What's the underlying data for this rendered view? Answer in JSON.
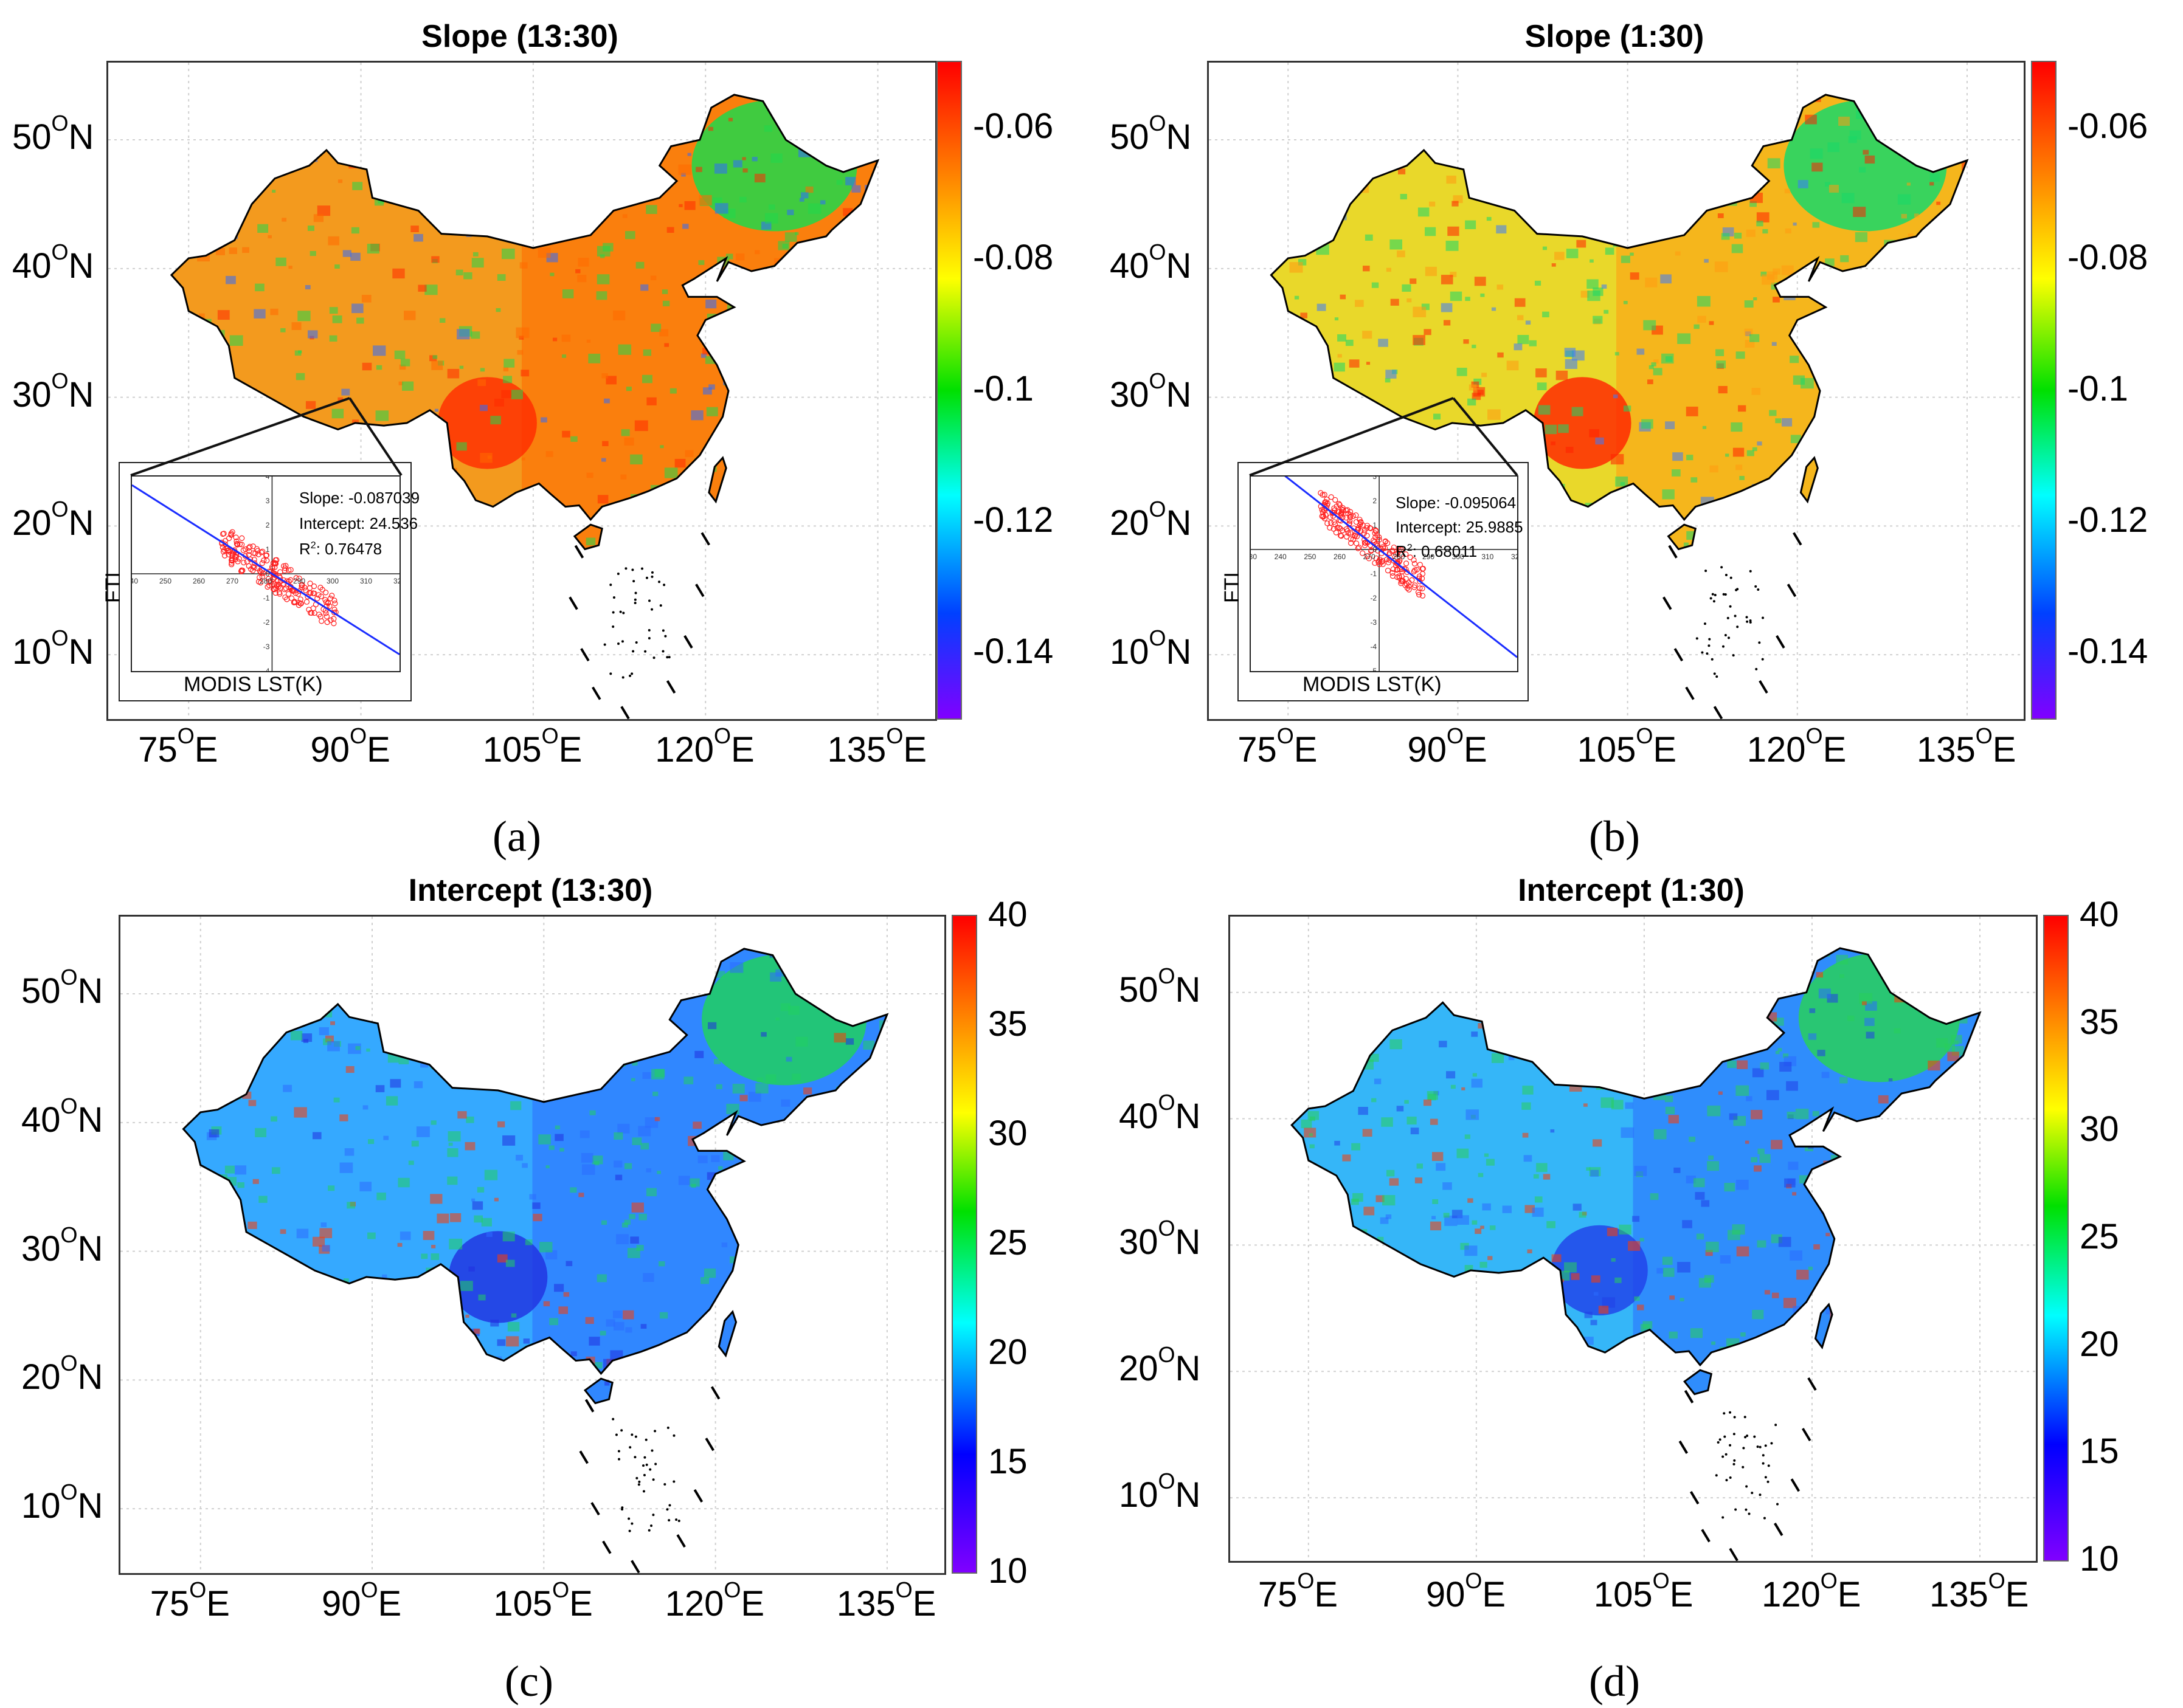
{
  "lat_labels": [
    "50",
    "40",
    "30",
    "20",
    "10"
  ],
  "lat_suffix": "N",
  "lon_labels": [
    "75",
    "90",
    "105",
    "120",
    "135"
  ],
  "lon_suffix": "E",
  "deg_symbol": "O",
  "panels": [
    {
      "id": "a",
      "title": "Slope (13:30)",
      "label": "(a)",
      "colormap": "slope",
      "colorbar_ticks": [
        "-0.06",
        "-0.08",
        "-0.1",
        "-0.12",
        "-0.14"
      ],
      "colorbar_range": [
        -0.15,
        -0.05
      ],
      "colors": {
        "base": "#f39a1e",
        "east": "#ff6a00",
        "hot": "#ff2a00",
        "cool": "#1fd84a",
        "cold": "#2e6bff"
      },
      "inset": {
        "slope": "Slope: -0.087039",
        "intercept": "Intercept: 24.536",
        "r2_prefix": "R",
        "r2_sup": "2",
        "r2_value": ": 0.76478",
        "xlabel": "MODIS LST(K)",
        "ylabel": "FTI",
        "xticks": [
          "240",
          "250",
          "260",
          "270",
          "280",
          "290",
          "300",
          "310",
          "320"
        ],
        "yticks": [
          "4",
          "3",
          "2",
          "1",
          "0",
          "-1",
          "-2",
          "-3",
          "-4"
        ],
        "fit": {
          "slope": -0.087039,
          "intercept": 24.536
        }
      }
    },
    {
      "id": "b",
      "title": "Slope (1:30)",
      "label": "(b)",
      "colormap": "slope",
      "colorbar_ticks": [
        "-0.06",
        "-0.08",
        "-0.1",
        "-0.12",
        "-0.14"
      ],
      "colorbar_range": [
        -0.15,
        -0.05
      ],
      "colors": {
        "base": "#e9d82a",
        "east": "#ff9a10",
        "hot": "#ff2000",
        "cool": "#18d868",
        "cold": "#3a7aff"
      },
      "inset": {
        "slope": "Slope: -0.095064",
        "intercept": "Intercept: 25.9885",
        "r2_prefix": "R",
        "r2_sup": "2",
        "r2_value": ": 0.68011",
        "xlabel": "MODIS LST(K)",
        "ylabel": "FTI",
        "xticks": [
          "230",
          "240",
          "250",
          "260",
          "270",
          "280",
          "290",
          "300",
          "310",
          "320"
        ],
        "yticks": [
          "3",
          "2",
          "1",
          "0",
          "-1",
          "-2",
          "-3",
          "-4",
          "-5"
        ],
        "fit": {
          "slope": -0.095064,
          "intercept": 25.9885
        }
      }
    },
    {
      "id": "c",
      "title": "Intercept (13:30)",
      "label": "(c)",
      "colormap": "intercept",
      "colorbar_ticks": [
        "40",
        "35",
        "30",
        "25",
        "20",
        "15",
        "10"
      ],
      "colorbar_range": [
        10,
        40
      ],
      "colors": {
        "base": "#35a9ff",
        "east": "#2c6cff",
        "hot": "#ff3a00",
        "cool": "#20d060",
        "cold": "#2030e0"
      }
    },
    {
      "id": "d",
      "title": "Intercept (1:30)",
      "label": "(d)",
      "colormap": "intercept",
      "colorbar_ticks": [
        "40",
        "35",
        "30",
        "25",
        "20",
        "15",
        "10"
      ],
      "colorbar_range": [
        10,
        40
      ],
      "colors": {
        "base": "#35b6f8",
        "east": "#2a6cff",
        "hot": "#ff3a00",
        "cool": "#28d05a",
        "cold": "#2040e8"
      }
    }
  ]
}
